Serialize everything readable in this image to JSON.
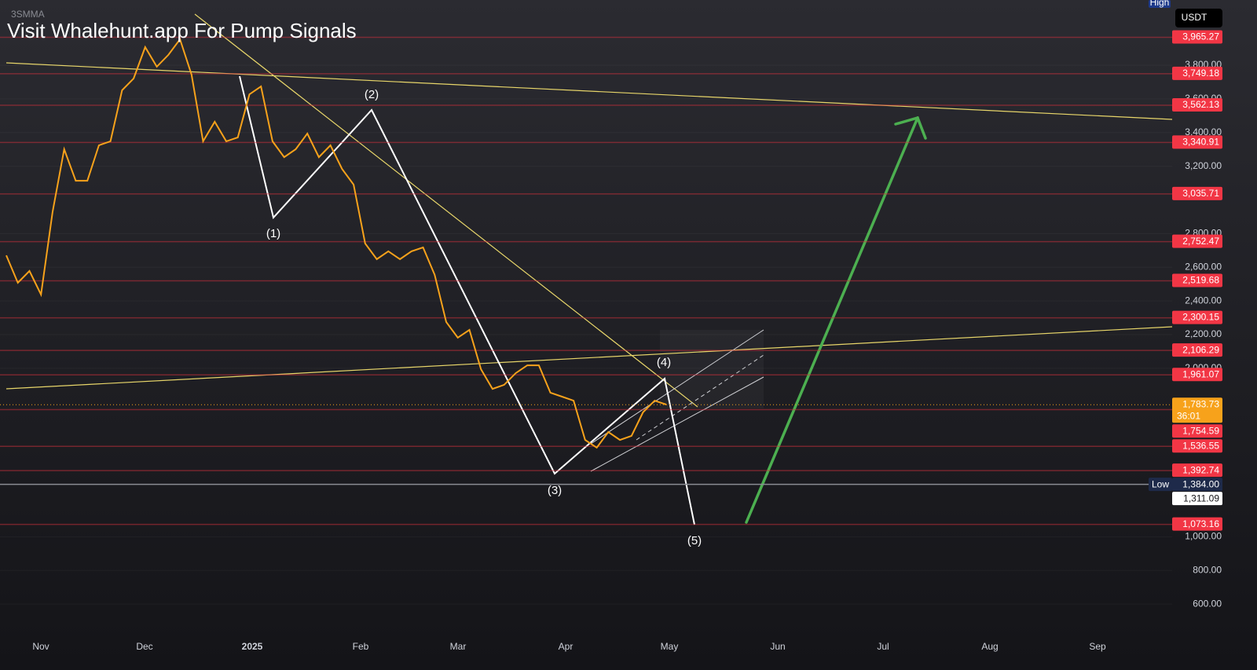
{
  "header": {
    "indicator": "3SMMA",
    "watermark": "Visit Whalehunt.app For Pump Signals",
    "currency": "USDT",
    "high_tag": "High"
  },
  "chart_data": {
    "type": "line",
    "series": [
      {
        "color": "#f7a21b",
        "values": [
          2671,
          2508,
          2578,
          2438,
          2928,
          3301,
          3114,
          3114,
          3324,
          3348,
          3651,
          3721,
          3907,
          3791,
          3861,
          3954,
          3744,
          3348,
          3464,
          3348,
          3371,
          3627,
          3674,
          3348,
          3254,
          3301,
          3394,
          3254,
          3324,
          3184,
          3091,
          2741,
          2648,
          2695,
          2648,
          2695,
          2718,
          2555,
          2275,
          2182,
          2228,
          1995,
          1878,
          1902,
          1971,
          2018,
          2018,
          1855,
          1832,
          1808,
          1575,
          1529,
          1622,
          1575,
          1599,
          1739,
          1808,
          1785
        ]
      }
    ],
    "ylim": [
      400,
      4187
    ],
    "yticks": [
      {
        "value": 3800,
        "label": "3,800.00"
      },
      {
        "value": 3600,
        "label": "3,600.00"
      },
      {
        "value": 3400,
        "label": "3,400.00"
      },
      {
        "value": 3200,
        "label": "3,200.00"
      },
      {
        "value": 2800,
        "label": "2,800.00"
      },
      {
        "value": 2600,
        "label": "2,600.00"
      },
      {
        "value": 2400,
        "label": "2,400.00"
      },
      {
        "value": 2200,
        "label": "2,200.00"
      },
      {
        "value": 2000,
        "label": "2,000.00"
      },
      {
        "value": 1000,
        "label": "1,000.00"
      },
      {
        "value": 800,
        "label": "800.00"
      },
      {
        "value": 600,
        "label": "600.00"
      }
    ],
    "x_labels": [
      "Nov",
      "Dec",
      "2025",
      "Feb",
      "Mar",
      "Apr",
      "May",
      "Jun",
      "Jul",
      "Aug",
      "Sep"
    ],
    "levels": [
      {
        "value": 3965.27,
        "label": "3,965.27"
      },
      {
        "value": 3749.18,
        "label": "3,749.18"
      },
      {
        "value": 3562.13,
        "label": "3,562.13"
      },
      {
        "value": 3340.91,
        "label": "3,340.91"
      },
      {
        "value": 3035.71,
        "label": "3,035.71"
      },
      {
        "value": 2752.47,
        "label": "2,752.47"
      },
      {
        "value": 2519.68,
        "label": "2,519.68"
      },
      {
        "value": 2300.15,
        "label": "2,300.15"
      },
      {
        "value": 2106.29,
        "label": "2,106.29"
      },
      {
        "value": 1961.07,
        "label": "1,961.07"
      },
      {
        "value": 1754.59,
        "label": "1,754.59"
      },
      {
        "value": 1536.55,
        "label": "1,536.55"
      },
      {
        "value": 1392.74,
        "label": "1,392.74"
      },
      {
        "value": 1073.16,
        "label": "1,073.16"
      }
    ],
    "current_price": {
      "value": 1783.73,
      "label": "1,783.73",
      "countdown": "36:01"
    },
    "low": {
      "tag": "Low",
      "value": 1384,
      "label": "1,384.00"
    },
    "mark_price": {
      "value": 1311.09,
      "label": "1,311.09"
    },
    "annotations": [
      "(1)",
      "(2)",
      "(3)",
      "(4)",
      "(5)"
    ]
  }
}
